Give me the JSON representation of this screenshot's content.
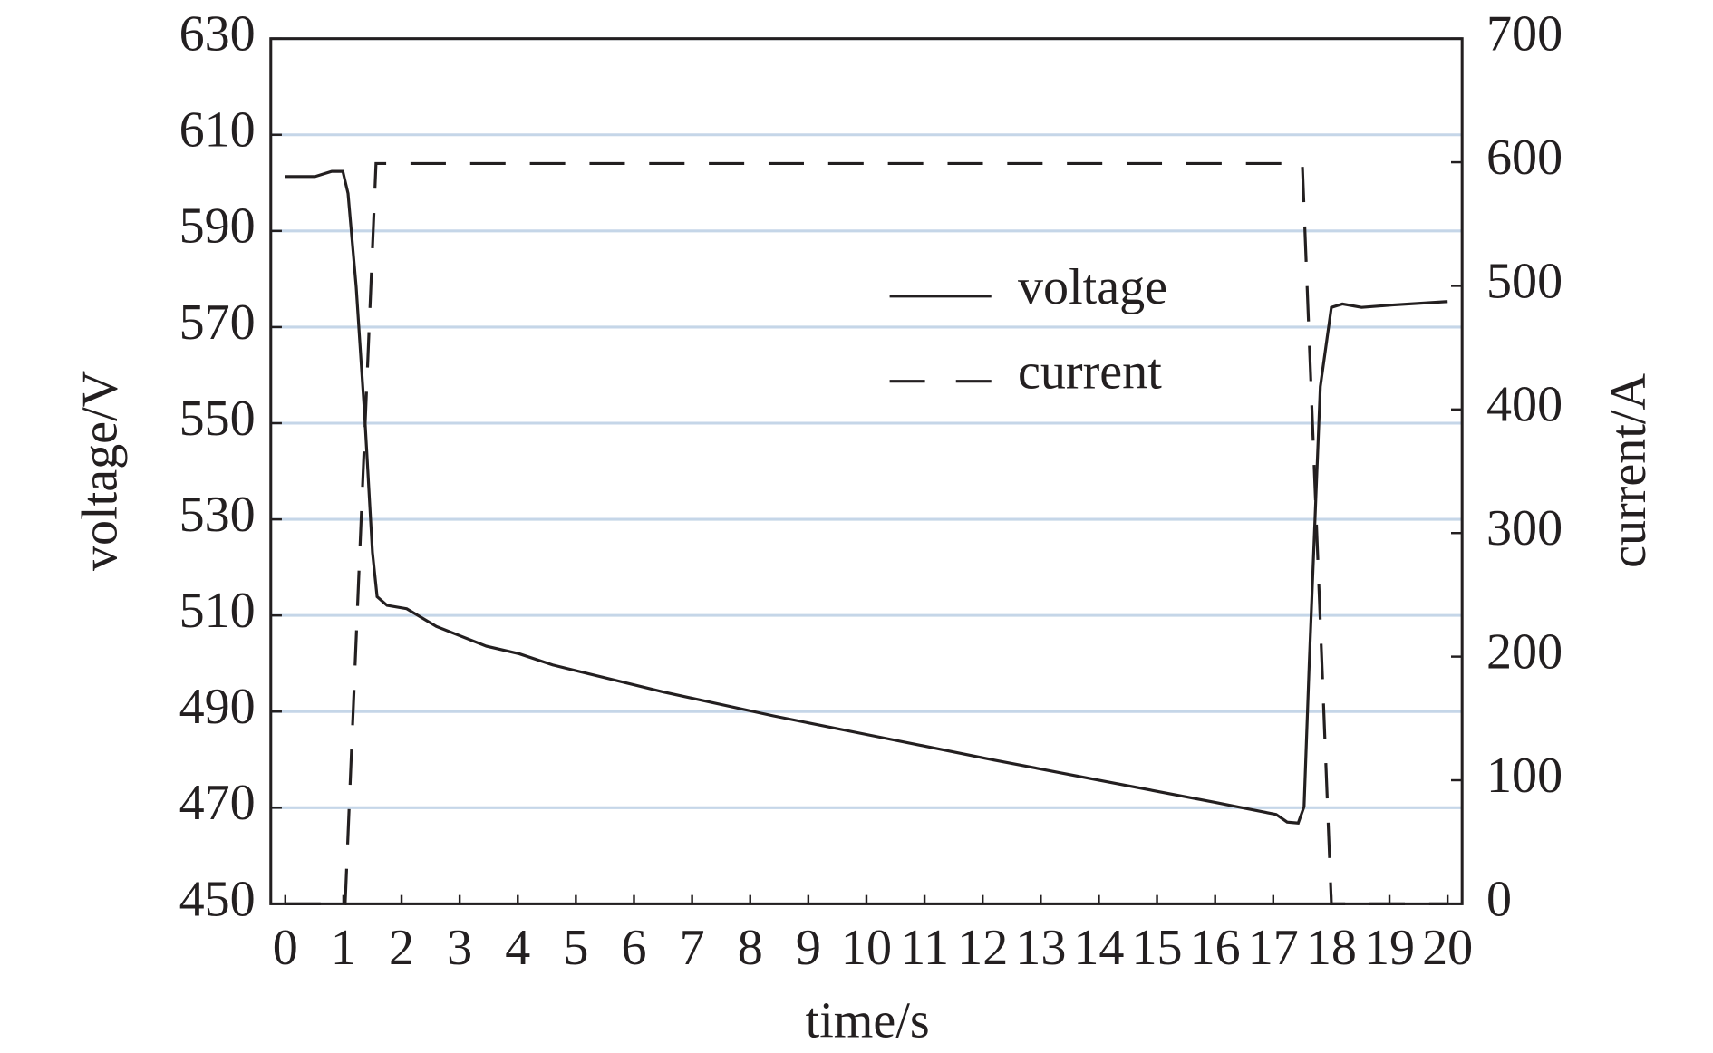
{
  "chart_data": {
    "type": "line",
    "xlabel": "time/s",
    "ylabel": "voltage/V",
    "y2label": "current/A",
    "xlim": [
      -0.25,
      20.25
    ],
    "xticks": [
      0,
      1,
      2,
      3,
      4,
      5,
      6,
      7,
      8,
      9,
      10,
      11,
      12,
      13,
      14,
      15,
      16,
      17,
      18,
      19,
      20
    ],
    "ylim": [
      450,
      630
    ],
    "yticks": [
      450,
      470,
      490,
      510,
      530,
      550,
      570,
      590,
      610,
      630
    ],
    "y2lim": [
      0,
      700
    ],
    "y2ticks": [
      0,
      100,
      200,
      300,
      400,
      500,
      600,
      700
    ],
    "grid": true,
    "grid_color": "#c5d6e8",
    "legend": "upper right",
    "series": [
      {
        "name": "voltage",
        "color": "#231f20",
        "style": "solid",
        "x": [
          0,
          0.51,
          0.8,
          0.99,
          1.08,
          1.22,
          1.37,
          1.5,
          1.58,
          1.75,
          2.09,
          2.6,
          3.46,
          4.03,
          4.6,
          6.5,
          8.4,
          10.3,
          12.2,
          14.1,
          16.0,
          17.05,
          17.24,
          17.43,
          17.53,
          17.62,
          17.81,
          18.0,
          18.19,
          18.52,
          19.05,
          20
        ],
        "values": [
          601.3,
          601.3,
          602.4,
          602.4,
          597.8,
          578.3,
          550.7,
          523.1,
          513.9,
          512.1,
          511.4,
          507.7,
          503.6,
          502.0,
          499.7,
          494.1,
          489.1,
          484.5,
          479.9,
          475.5,
          471.1,
          468.6,
          467.0,
          466.8,
          470.2,
          500.1,
          557.6,
          574.1,
          574.8,
          574.1,
          574.6,
          575.3
        ]
      },
      {
        "name": "current",
        "color": "#231f20",
        "style": "dashed",
        "axis": "y2",
        "x": [
          0,
          1.03,
          1.56,
          17.5,
          18.0,
          20
        ],
        "values": [
          0,
          0,
          599,
          599,
          0,
          0
        ]
      }
    ]
  }
}
